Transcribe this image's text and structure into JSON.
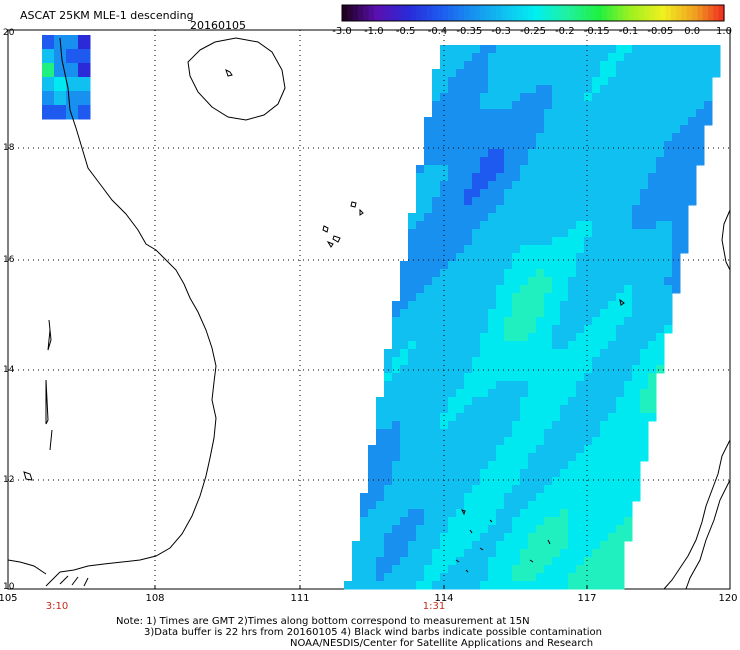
{
  "header": {
    "title": "ASCAT 25KM MLE-1 descending",
    "date": "20160105"
  },
  "colorbar": {
    "labels": [
      "-3.0",
      "-1.0",
      "-0.5",
      "-0.4",
      "-0.35",
      "-0.3",
      "-0.25",
      "-0.2",
      "-0.15",
      "-0.1",
      "-0.05",
      "0.0",
      "1.0"
    ],
    "colors": [
      "#200020",
      "#5a0fb0",
      "#2a2ad8",
      "#1e5af0",
      "#1890f0",
      "#10c0f0",
      "#00f0f0",
      "#20f0a0",
      "#20f040",
      "#a0f020",
      "#f0f020",
      "#f0a020",
      "#f02020"
    ]
  },
  "axes": {
    "x_ticks": [
      "105",
      "108",
      "111",
      "114",
      "117",
      "120"
    ],
    "y_ticks": [
      "20",
      "18",
      "16",
      "14",
      "12",
      "10"
    ]
  },
  "times": [
    "3:10",
    "1:31"
  ],
  "notes": {
    "line1": "Note: 1) Times are GMT 2)Times along bottom correspond to measurement at 15N",
    "line2": "3)Data buffer is 22 hrs from 20160105 4) Black wind barbs indicate possible contamination",
    "line3": "NOAA/NESDIS/Center for Satellite Applications and Research"
  },
  "colors": {
    "coastline": "#000000",
    "grid": "#000000",
    "time_label": "#c62a1a"
  }
}
